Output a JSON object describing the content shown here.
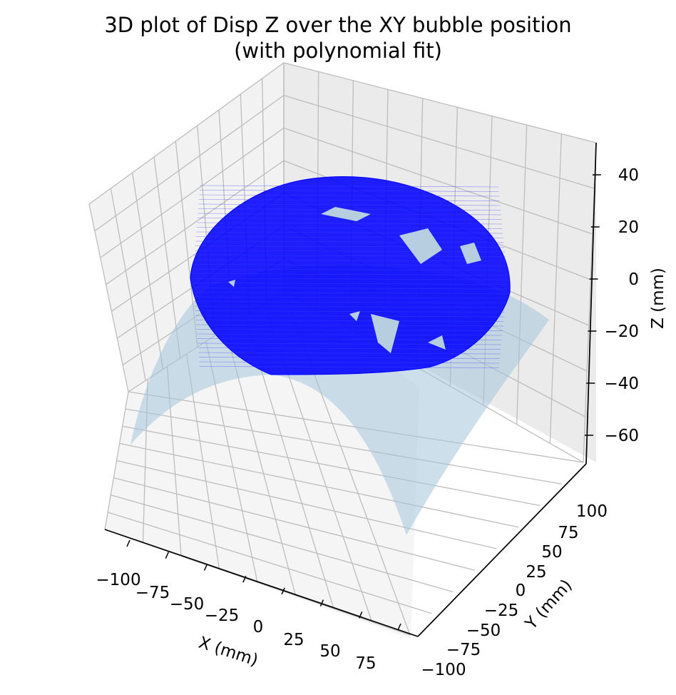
{
  "chart_data": {
    "type": "scatter",
    "projection": "3d",
    "title": [
      "3D plot of Disp Z over the XY bubble position",
      "(with polynomial fit)"
    ],
    "xlabel": "X (mm)",
    "ylabel": "Y (mm)",
    "zlabel": "Z (mm)",
    "xticks": [
      "−100",
      "−75",
      "−50",
      "−25",
      "0",
      "25",
      "50",
      "75"
    ],
    "yticks": [
      "−100",
      "−75",
      "−50",
      "−25",
      "0",
      "25",
      "50",
      "75",
      "100"
    ],
    "zticks": [
      "−60",
      "−40",
      "−20",
      "0",
      "20",
      "40"
    ],
    "grid": true,
    "series": [
      {
        "kind": "scatter-points",
        "color": "#0000ff",
        "description_points": "dome-shaped measured displacement cloud, peak about 40 mm near center, about -20 mm at rim",
        "approx_peak_z": 40,
        "approx_rim_z": -20
      },
      {
        "kind": "surface",
        "color": "#a6c4dc",
        "approx_center_z": 37,
        "approx_corner_min_z": -68
      }
    ]
  },
  "colors": {
    "points": "#0000ff",
    "surface": "#a6c4dc",
    "pane_back": "#f2f2f2",
    "pane_side": "#ebebeb",
    "pane_floor": "#f5f5f5",
    "grid": "#bdbdbd"
  }
}
